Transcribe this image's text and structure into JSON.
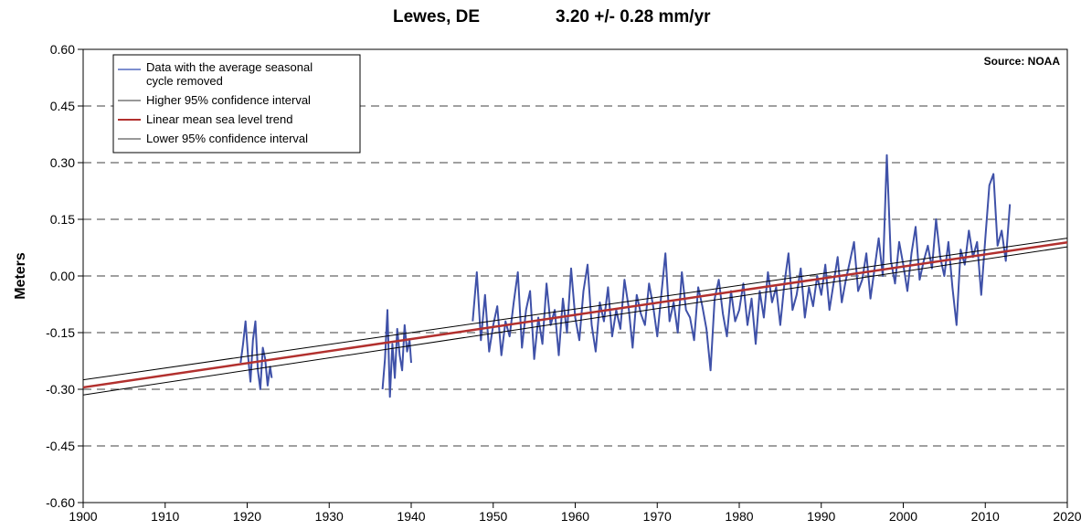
{
  "chart_data": {
    "type": "line",
    "title": "Lewes, DE",
    "subtitle": "3.20 +/- 0.28 mm/yr",
    "source": "Source: NOAA",
    "xlabel": "",
    "ylabel": "Meters",
    "xlim": [
      1900,
      2020
    ],
    "ylim": [
      -0.6,
      0.6
    ],
    "x_ticks": [
      "1900",
      "1910",
      "1920",
      "1930",
      "1940",
      "1950",
      "1960",
      "1970",
      "1980",
      "1990",
      "2000",
      "2010",
      "2020"
    ],
    "y_ticks": [
      "0.60",
      "0.45",
      "0.30",
      "0.15",
      "0.00",
      "-0.15",
      "-0.30",
      "-0.45",
      "-0.60"
    ],
    "grid": "horizontal dashed",
    "legend_position": "top-left",
    "colors": {
      "data": "#3f51a8",
      "trend": "#b2302e",
      "confidence": "#000000",
      "grid": "#808080"
    },
    "series": [
      {
        "name": "Data with the average seasonal cycle removed",
        "segments": [
          {
            "x": [
              1919.2,
              1919.5,
              1919.8,
              1920.1,
              1920.4,
              1920.7,
              1921.0,
              1921.3,
              1921.6,
              1921.9,
              1922.2,
              1922.5,
              1922.8,
              1923.0
            ],
            "y": [
              -0.23,
              -0.18,
              -0.12,
              -0.21,
              -0.28,
              -0.17,
              -0.12,
              -0.25,
              -0.3,
              -0.19,
              -0.22,
              -0.29,
              -0.24,
              -0.27
            ]
          },
          {
            "x": [
              1936.5,
              1936.8,
              1937.1,
              1937.4,
              1937.7,
              1938.0,
              1938.3,
              1938.6,
              1938.9,
              1939.2,
              1939.5,
              1939.8,
              1940.0
            ],
            "y": [
              -0.3,
              -0.22,
              -0.09,
              -0.32,
              -0.18,
              -0.27,
              -0.14,
              -0.21,
              -0.25,
              -0.13,
              -0.2,
              -0.17,
              -0.23
            ]
          },
          {
            "x": [
              1947.5,
              1948.0,
              1948.5,
              1949.0,
              1949.5,
              1950.0,
              1950.5,
              1951.0,
              1951.5,
              1952.0,
              1952.5,
              1953.0,
              1953.5,
              1954.0,
              1954.5,
              1955.0,
              1955.5,
              1956.0,
              1956.5,
              1957.0,
              1957.5,
              1958.0,
              1958.5,
              1959.0,
              1959.5,
              1960.0,
              1960.5,
              1961.0,
              1961.5,
              1962.0,
              1962.5,
              1963.0,
              1963.5,
              1964.0,
              1964.5,
              1965.0,
              1965.5,
              1966.0,
              1966.5,
              1967.0,
              1967.5,
              1968.0,
              1968.5,
              1969.0,
              1969.5,
              1970.0,
              1970.5,
              1971.0,
              1971.5,
              1972.0,
              1972.5,
              1973.0,
              1973.5,
              1974.0,
              1974.5,
              1975.0,
              1975.5,
              1976.0,
              1976.5,
              1977.0,
              1977.5,
              1978.0,
              1978.5,
              1979.0,
              1979.5,
              1980.0,
              1980.5,
              1981.0,
              1981.5,
              1982.0,
              1982.5,
              1983.0,
              1983.5,
              1984.0,
              1984.5,
              1985.0,
              1985.5,
              1986.0,
              1986.5,
              1987.0,
              1987.5,
              1988.0,
              1988.5,
              1989.0,
              1989.5,
              1990.0,
              1990.5,
              1991.0,
              1991.5,
              1992.0,
              1992.5,
              1993.0,
              1993.5,
              1994.0,
              1994.5,
              1995.0,
              1995.5,
              1996.0,
              1996.5,
              1997.0,
              1997.5,
              1998.0,
              1998.5,
              1999.0,
              1999.5,
              2000.0,
              2000.5,
              2001.0,
              2001.5,
              2002.0,
              2002.5,
              2003.0,
              2003.5,
              2004.0,
              2004.5,
              2005.0,
              2005.5,
              2006.0,
              2006.5,
              2007.0,
              2007.5,
              2008.0,
              2008.5,
              2009.0,
              2009.5,
              2010.0,
              2010.5,
              2011.0,
              2011.5,
              2012.0,
              2012.5,
              2013.0
            ],
            "y": [
              -0.12,
              0.01,
              -0.17,
              -0.05,
              -0.2,
              -0.13,
              -0.08,
              -0.21,
              -0.12,
              -0.16,
              -0.07,
              0.01,
              -0.19,
              -0.09,
              -0.04,
              -0.22,
              -0.11,
              -0.18,
              -0.02,
              -0.13,
              -0.09,
              -0.21,
              -0.06,
              -0.15,
              0.02,
              -0.11,
              -0.17,
              -0.04,
              0.03,
              -0.13,
              -0.2,
              -0.07,
              -0.12,
              -0.03,
              -0.16,
              -0.09,
              -0.14,
              -0.01,
              -0.08,
              -0.19,
              -0.05,
              -0.1,
              -0.13,
              -0.02,
              -0.08,
              -0.16,
              -0.05,
              0.06,
              -0.12,
              -0.07,
              -0.15,
              0.01,
              -0.09,
              -0.11,
              -0.17,
              -0.03,
              -0.08,
              -0.14,
              -0.25,
              -0.06,
              -0.01,
              -0.1,
              -0.16,
              -0.04,
              -0.12,
              -0.09,
              -0.02,
              -0.13,
              -0.06,
              -0.18,
              -0.04,
              -0.11,
              0.01,
              -0.07,
              -0.03,
              -0.13,
              -0.02,
              0.06,
              -0.09,
              -0.05,
              0.02,
              -0.11,
              -0.03,
              -0.08,
              0.0,
              -0.05,
              0.03,
              -0.09,
              -0.02,
              0.05,
              -0.07,
              -0.01,
              0.04,
              0.09,
              -0.04,
              -0.01,
              0.06,
              -0.06,
              0.02,
              0.1,
              0.0,
              0.32,
              0.04,
              -0.02,
              0.09,
              0.03,
              -0.04,
              0.06,
              0.13,
              -0.01,
              0.04,
              0.08,
              0.02,
              0.15,
              0.05,
              0.0,
              0.09,
              -0.03,
              -0.13,
              0.07,
              0.03,
              0.12,
              0.05,
              0.09,
              -0.05,
              0.1,
              0.24,
              0.27,
              0.08,
              0.12,
              0.04,
              0.19
            ]
          }
        ]
      },
      {
        "name": "Higher 95% confidence interval",
        "x": [
          1900,
          2020
        ],
        "y": [
          -0.275,
          0.1
        ]
      },
      {
        "name": "Linear mean sea level trend",
        "x": [
          1900,
          2020
        ],
        "y": [
          -0.295,
          0.089
        ]
      },
      {
        "name": "Lower 95% confidence interval",
        "x": [
          1900,
          2020
        ],
        "y": [
          -0.315,
          0.077
        ]
      }
    ],
    "legend": {
      "entries": [
        {
          "label_line1": "Data with the average seasonal",
          "label_line2": "cycle removed",
          "color": "#7e8fcf"
        },
        {
          "label_line1": "Higher 95% confidence interval",
          "color": "#333333"
        },
        {
          "label_line1": "Linear mean sea level trend",
          "color": "#b2302e"
        },
        {
          "label_line1": "Lower 95% confidence interval",
          "color": "#333333"
        }
      ]
    }
  }
}
